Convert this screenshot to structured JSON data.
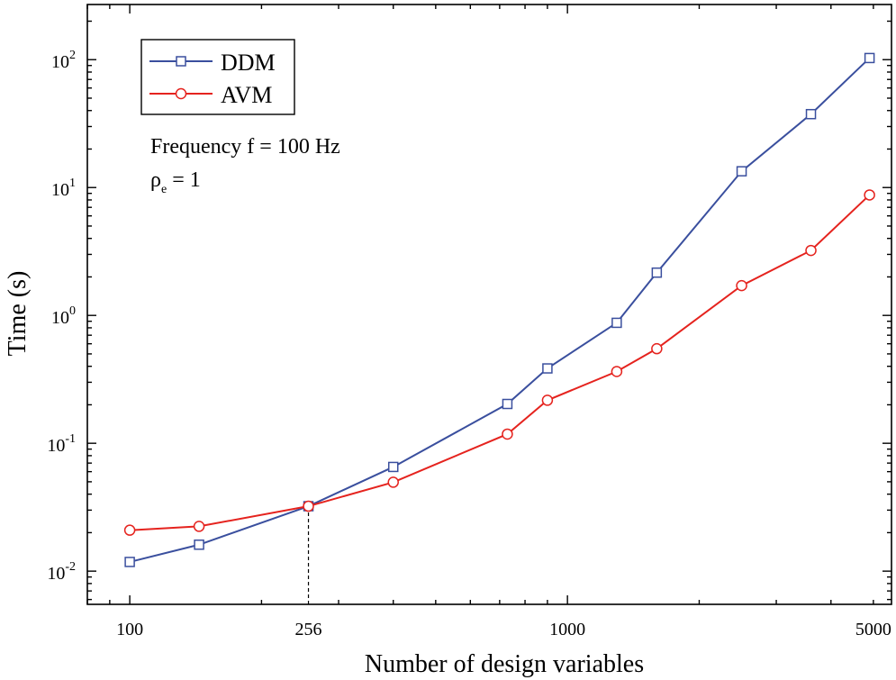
{
  "chart_data": {
    "type": "line",
    "xscale": "log",
    "yscale": "log",
    "xlabel": "Number of design variables",
    "ylabel": "Time (s)",
    "xlim": [
      80,
      5500
    ],
    "ylim": [
      0.0055,
      270
    ],
    "x_tick_labels": [
      {
        "value": 100,
        "label": "100"
      },
      {
        "value": 256,
        "label": "256"
      },
      {
        "value": 1000,
        "label": "1000"
      },
      {
        "value": 5000,
        "label": "5000"
      }
    ],
    "y_tick_labels": [
      {
        "value": 0.01,
        "base": "10",
        "exp": "-2"
      },
      {
        "value": 0.1,
        "base": "10",
        "exp": "-1"
      },
      {
        "value": 1,
        "base": "10",
        "exp": "0"
      },
      {
        "value": 10,
        "base": "10",
        "exp": "1"
      },
      {
        "value": 100,
        "base": "10",
        "exp": "2"
      }
    ],
    "x": [
      100,
      144,
      256,
      400,
      729,
      900,
      1296,
      1600,
      2500,
      3600,
      4900
    ],
    "series": [
      {
        "name": "DDM",
        "color": "#3a4f9e",
        "marker": "square",
        "values": [
          0.0118,
          0.0161,
          0.0322,
          0.0653,
          0.203,
          0.385,
          0.875,
          2.16,
          13.4,
          37.5,
          103
        ]
      },
      {
        "name": "AVM",
        "color": "#e5231e",
        "marker": "circle",
        "values": [
          0.0209,
          0.0224,
          0.0322,
          0.0496,
          0.118,
          0.217,
          0.364,
          0.549,
          1.71,
          3.22,
          8.75
        ]
      }
    ],
    "reference_line": {
      "x": 256,
      "style": "dashed"
    },
    "annotation": {
      "frequency": "Frequency f = 100 Hz",
      "density_symbol": "ρ",
      "density_subscript": "e",
      "density_value": " = 1"
    },
    "legend_position": "top-left"
  }
}
